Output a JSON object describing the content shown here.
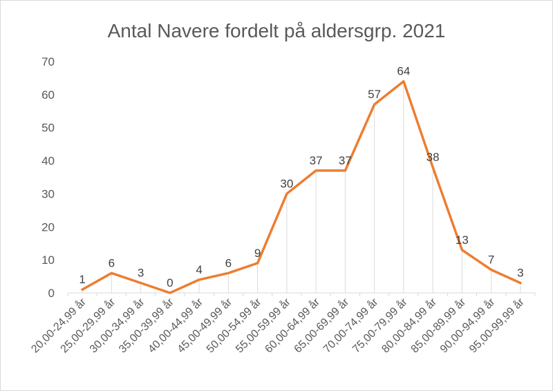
{
  "chart_data": {
    "type": "line",
    "title": "Antal Navere fordelt på aldersgrp. 2021",
    "xlabel": "",
    "ylabel": "",
    "ylim": [
      0,
      70
    ],
    "yticks": [
      0,
      10,
      20,
      30,
      40,
      50,
      60,
      70
    ],
    "grid": "vertical drop lines",
    "legend": "none",
    "categories": [
      "20,00-24,99 år",
      "25,00-29,99 år",
      "30,00-34,99 år",
      "35,00-39,99 år",
      "40,00-44,99 år",
      "45,00-49,99 år",
      "50,00-54,99 år",
      "55,00-59,99 år",
      "60,00-64,99 år",
      "65,00-69,99 år",
      "70,00-74,99 år",
      "75,00-79,99 år",
      "80,00-84,99 år",
      "85,00-89,99 år",
      "90,00-94,99 år",
      "95,00-99,99 år"
    ],
    "series": [
      {
        "values": [
          1,
          6,
          3,
          0,
          4,
          6,
          9,
          30,
          37,
          37,
          57,
          64,
          38,
          13,
          7,
          3
        ]
      }
    ],
    "colors": {
      "line": "#ed7d31",
      "droplines": "#d9d9d9",
      "text": "#595959"
    }
  }
}
